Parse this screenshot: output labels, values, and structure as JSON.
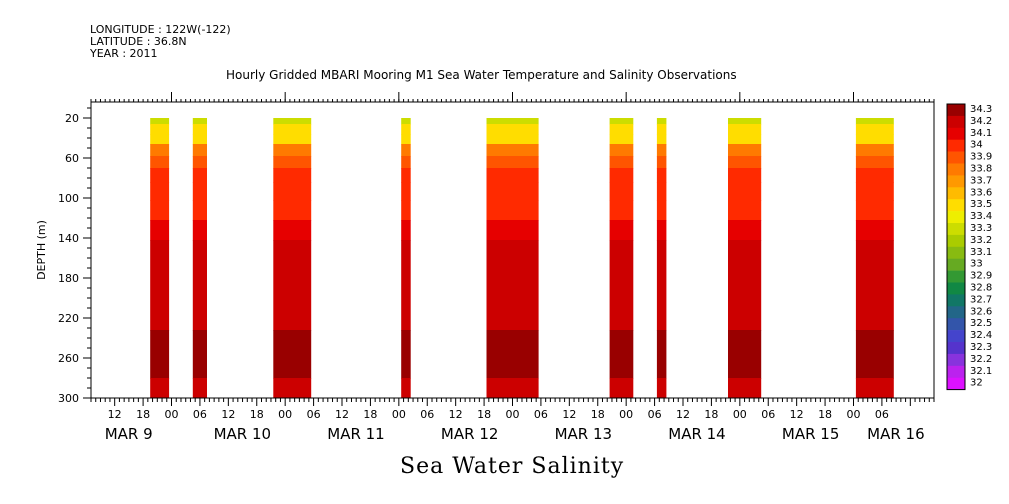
{
  "meta": {
    "longitude": "LONGITUDE : 122W(-122)",
    "latitude": "LATITUDE : 36.8N",
    "year": "YEAR : 2011"
  },
  "chart_data": {
    "type": "heatmap",
    "title": "Hourly Gridded MBARI Mooring M1 Sea Water Temperature and Salinity Observations",
    "bottom_title": "Sea Water Salinity",
    "ylabel": "DEPTH (m)",
    "xlabel": "",
    "x_units": "hours since MAR 9 00:00 (2011)",
    "xlim": [
      -17,
      161
    ],
    "ylim": [
      300,
      4
    ],
    "y_reversed": true,
    "y_ticks": [
      20,
      60,
      100,
      140,
      180,
      220,
      260,
      300
    ],
    "x_hour_ticks": [
      {
        "h": -12,
        "label": "12"
      },
      {
        "h": -6,
        "label": "18"
      },
      {
        "h": 0,
        "label": "00"
      },
      {
        "h": 6,
        "label": "06"
      },
      {
        "h": 12,
        "label": "12"
      },
      {
        "h": 18,
        "label": "18"
      },
      {
        "h": 24,
        "label": "00"
      },
      {
        "h": 30,
        "label": "06"
      },
      {
        "h": 36,
        "label": "12"
      },
      {
        "h": 42,
        "label": "18"
      },
      {
        "h": 48,
        "label": "00"
      },
      {
        "h": 54,
        "label": "06"
      },
      {
        "h": 60,
        "label": "12"
      },
      {
        "h": 66,
        "label": "18"
      },
      {
        "h": 72,
        "label": "00"
      },
      {
        "h": 78,
        "label": "06"
      },
      {
        "h": 84,
        "label": "12"
      },
      {
        "h": 90,
        "label": "18"
      },
      {
        "h": 96,
        "label": "00"
      },
      {
        "h": 102,
        "label": "06"
      },
      {
        "h": 108,
        "label": "12"
      },
      {
        "h": 114,
        "label": "18"
      },
      {
        "h": 120,
        "label": "00"
      },
      {
        "h": 126,
        "label": "06"
      },
      {
        "h": 132,
        "label": "12"
      },
      {
        "h": 138,
        "label": "18"
      },
      {
        "h": 144,
        "label": "00"
      },
      {
        "h": 150,
        "label": "06"
      }
    ],
    "day_labels": [
      {
        "h": -12,
        "label": "MAR  9"
      },
      {
        "h": 12,
        "label": "MAR 10"
      },
      {
        "h": 36,
        "label": "MAR 11"
      },
      {
        "h": 60,
        "label": "MAR 12"
      },
      {
        "h": 84,
        "label": "MAR 13"
      },
      {
        "h": 108,
        "label": "MAR 14"
      },
      {
        "h": 132,
        "label": "MAR 15"
      },
      {
        "h": 150,
        "label": "MAR 16"
      }
    ],
    "data_blocks": [
      {
        "start": -4.5,
        "end": -0.5
      },
      {
        "start": 4.5,
        "end": 7.5
      },
      {
        "start": 21.5,
        "end": 29.5
      },
      {
        "start": 48.5,
        "end": 50.5
      },
      {
        "start": 66.5,
        "end": 77.5
      },
      {
        "start": 92.5,
        "end": 97.5
      },
      {
        "start": 102.5,
        "end": 104.5
      },
      {
        "start": 117.5,
        "end": 124.5
      },
      {
        "start": 144.5,
        "end": 152.5
      }
    ],
    "depth_profile": [
      {
        "depth_to": 26,
        "value": 33.25
      },
      {
        "depth_to": 36,
        "value": 33.45
      },
      {
        "depth_to": 46,
        "value": 33.55
      },
      {
        "depth_to": 58,
        "value": 33.75
      },
      {
        "depth_to": 70,
        "value": 33.85
      },
      {
        "depth_to": 84,
        "value": 33.95
      },
      {
        "depth_to": 102,
        "value": 34.0
      },
      {
        "depth_to": 122,
        "value": 34.05
      },
      {
        "depth_to": 142,
        "value": 34.1
      },
      {
        "depth_to": 232,
        "value": 34.2
      },
      {
        "depth_to": 280,
        "value": 34.3
      },
      {
        "depth_to": 300,
        "value": 34.2
      }
    ],
    "colorbar": {
      "levels": [
        "34.3",
        "34.2",
        "34.1",
        "34",
        "33.9",
        "33.8",
        "33.7",
        "33.6",
        "33.5",
        "33.4",
        "33.3",
        "33.2",
        "33.1",
        "33",
        "32.9",
        "32.8",
        "32.7",
        "32.6",
        "32.5",
        "32.4",
        "32.3",
        "32.2",
        "32.1",
        "32"
      ],
      "colors": [
        "#990000",
        "#cc0000",
        "#e60000",
        "#ff2a00",
        "#ff5500",
        "#ff7a00",
        "#ff9900",
        "#ffbb00",
        "#ffdd00",
        "#eeee00",
        "#ccdd00",
        "#aacc00",
        "#88bb11",
        "#66aa22",
        "#339933",
        "#118844",
        "#117766",
        "#226688",
        "#3355aa",
        "#4444cc",
        "#5533cc",
        "#8833dd",
        "#bb22ee",
        "#dd11ff"
      ]
    }
  }
}
